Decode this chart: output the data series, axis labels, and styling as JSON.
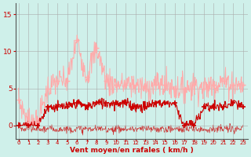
{
  "background_color": "#cff0ea",
  "grid_color": "#aaaaaa",
  "ylabel_ticks": [
    0,
    5,
    10,
    15
  ],
  "ylim": [
    -1.8,
    16.5
  ],
  "xlim": [
    -0.3,
    23.5
  ],
  "xlabel": "Vent moyen/en rafales ( km/h )",
  "xlabel_color": "#cc0000",
  "axis_color": "#555555",
  "tick_color": "#cc0000",
  "rafales_color": "#ffaaaa",
  "moyen_color": "#cc0000",
  "noise_color": "#cc0000",
  "hours": [
    0,
    1,
    2,
    3,
    4,
    5,
    6,
    7,
    8,
    9,
    10,
    11,
    12,
    13,
    14,
    15,
    16,
    17,
    18,
    19,
    20,
    21,
    22,
    23
  ],
  "rafales_markers": [
    3.5,
    0.5,
    0.5,
    5.0,
    6.0,
    6.0,
    11.5,
    6.5,
    10.5,
    6.0,
    5.5,
    5.5,
    5.5,
    5.0,
    5.5,
    5.5,
    5.0,
    5.0,
    5.5,
    5.0,
    5.5,
    6.0,
    5.5,
    5.5
  ],
  "moyen_markers": [
    0.0,
    0.0,
    0.0,
    2.5,
    2.5,
    2.5,
    3.0,
    2.5,
    3.0,
    3.0,
    3.0,
    3.0,
    2.5,
    2.5,
    3.0,
    3.0,
    3.0,
    0.0,
    0.0,
    2.5,
    2.5,
    2.5,
    3.0,
    2.5
  ]
}
